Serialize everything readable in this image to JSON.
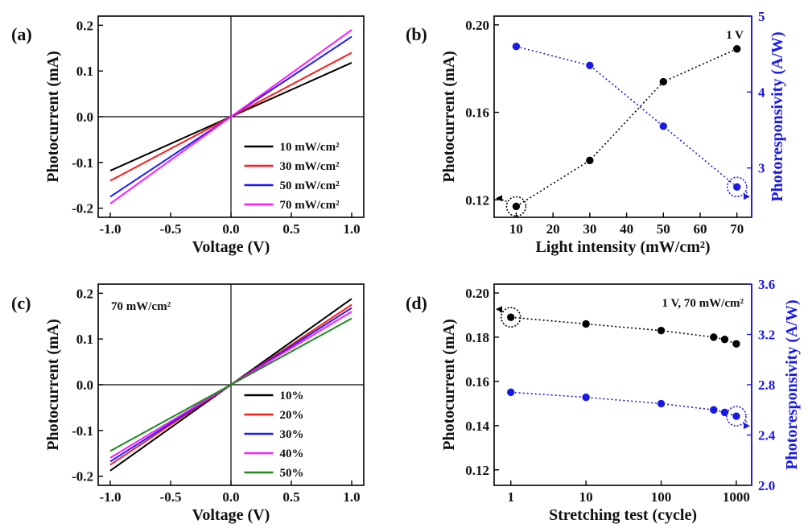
{
  "chart_data": [
    {
      "panel": "(a)",
      "type": "line",
      "xlabel": "Voltage (V)",
      "ylabel": "Photocurrent (mA)",
      "xlim": [
        -1.1,
        1.1
      ],
      "ylim": [
        -0.22,
        0.22
      ],
      "xticks": [
        -1.0,
        -0.5,
        0.0,
        0.5,
        1.0
      ],
      "xtick_labels": [
        "-1.0",
        "-0.5",
        "0.0",
        "0.5",
        "1.0"
      ],
      "yticks": [
        -0.2,
        -0.1,
        0.0,
        0.1,
        0.2
      ],
      "ytick_labels": [
        "-0.2",
        "-0.1",
        "0.0",
        "0.1",
        "0.2"
      ],
      "legend_position": "lower-right",
      "series": [
        {
          "name": "10 mW/cm²",
          "color": "#000000",
          "x": [
            -1.0,
            1.0
          ],
          "y": [
            -0.118,
            0.118
          ]
        },
        {
          "name": "30 mW/cm²",
          "color": "#ff1a1a",
          "x": [
            -1.0,
            1.0
          ],
          "y": [
            -0.14,
            0.14
          ]
        },
        {
          "name": "50 mW/cm²",
          "color": "#1a1aff",
          "x": [
            -1.0,
            1.0
          ],
          "y": [
            -0.175,
            0.175
          ]
        },
        {
          "name": "70 mW/cm²",
          "color": "#ff1aff",
          "x": [
            -1.0,
            1.0
          ],
          "y": [
            -0.19,
            0.19
          ]
        }
      ]
    },
    {
      "panel": "(b)",
      "type": "line",
      "annotation": "1 V",
      "xlabel": "Light intensity (mW/cm²)",
      "ylabel": "Photocurrent (mA)",
      "ylabel_right": "Photoresponsivity (A/W)",
      "xlim": [
        4,
        74
      ],
      "ylim": [
        0.112,
        0.204
      ],
      "ylim_right": [
        2.35,
        5.0
      ],
      "xticks": [
        10,
        20,
        30,
        40,
        50,
        60,
        70
      ],
      "xtick_labels": [
        "10",
        "20",
        "30",
        "40",
        "50",
        "60",
        "70"
      ],
      "yticks": [
        0.12,
        0.16,
        0.2
      ],
      "ytick_labels": [
        "0.12",
        "0.16",
        "0.20"
      ],
      "yticks_right": [
        3,
        4,
        5
      ],
      "ytick_labels_right": [
        "3",
        "4",
        "5"
      ],
      "series": [
        {
          "axis": "left",
          "color": "#000000",
          "x": [
            10,
            30,
            50,
            70
          ],
          "y": [
            0.117,
            0.138,
            0.174,
            0.189
          ]
        },
        {
          "axis": "right",
          "color": "#1a1ae6",
          "x": [
            10,
            30,
            50,
            70
          ],
          "y": [
            4.6,
            4.35,
            3.55,
            2.75
          ]
        }
      ]
    },
    {
      "panel": "(c)",
      "type": "line",
      "annotation": "70 mW/cm²",
      "xlabel": "Voltage (V)",
      "ylabel": "Photocurrent (mA)",
      "xlim": [
        -1.1,
        1.1
      ],
      "ylim": [
        -0.22,
        0.22
      ],
      "xticks": [
        -1.0,
        -0.5,
        0.0,
        0.5,
        1.0
      ],
      "xtick_labels": [
        "-1.0",
        "-0.5",
        "0.0",
        "0.5",
        "1.0"
      ],
      "yticks": [
        -0.2,
        -0.1,
        0.0,
        0.1,
        0.2
      ],
      "ytick_labels": [
        "-0.2",
        "-0.1",
        "0.0",
        "0.1",
        "0.2"
      ],
      "legend_position": "lower-right",
      "series": [
        {
          "name": "10%",
          "color": "#000000",
          "x": [
            -1.0,
            1.0
          ],
          "y": [
            -0.188,
            0.188
          ]
        },
        {
          "name": "20%",
          "color": "#ff1a1a",
          "x": [
            -1.0,
            1.0
          ],
          "y": [
            -0.175,
            0.175
          ]
        },
        {
          "name": "30%",
          "color": "#1a1aff",
          "x": [
            -1.0,
            1.0
          ],
          "y": [
            -0.168,
            0.168
          ]
        },
        {
          "name": "40%",
          "color": "#ff1aff",
          "x": [
            -1.0,
            1.0
          ],
          "y": [
            -0.16,
            0.16
          ]
        },
        {
          "name": "50%",
          "color": "#1a8c1a",
          "x": [
            -1.0,
            1.0
          ],
          "y": [
            -0.145,
            0.145
          ]
        }
      ]
    },
    {
      "panel": "(d)",
      "type": "line",
      "annotation": "1 V, 70 mW/cm²",
      "xlabel": "Stretching test (cycle)",
      "ylabel": "Photocurrent (mA)",
      "ylabel_right": "Photoresponsivity (A/W)",
      "xscale": "log",
      "xlim": [
        0.6,
        1600
      ],
      "ylim": [
        0.113,
        0.204
      ],
      "ylim_right": [
        2.0,
        3.6
      ],
      "xticks": [
        1,
        10,
        100,
        1000
      ],
      "xtick_labels": [
        "1",
        "10",
        "100",
        "1000"
      ],
      "yticks": [
        0.12,
        0.14,
        0.16,
        0.18,
        0.2
      ],
      "ytick_labels": [
        "0.12",
        "0.14",
        "0.16",
        "0.18",
        "0.20"
      ],
      "yticks_right": [
        2.0,
        2.4,
        2.8,
        3.2,
        3.6
      ],
      "ytick_labels_right": [
        "2.0",
        "2.4",
        "2.8",
        "3.2",
        "3.6"
      ],
      "series": [
        {
          "axis": "left",
          "color": "#000000",
          "x": [
            1,
            10,
            100,
            500,
            700,
            1000
          ],
          "y": [
            0.189,
            0.186,
            0.183,
            0.18,
            0.179,
            0.177
          ]
        },
        {
          "axis": "right",
          "color": "#1a1ae6",
          "x": [
            1,
            10,
            100,
            500,
            700,
            1000
          ],
          "y": [
            2.74,
            2.7,
            2.65,
            2.6,
            2.58,
            2.55
          ]
        }
      ]
    }
  ]
}
